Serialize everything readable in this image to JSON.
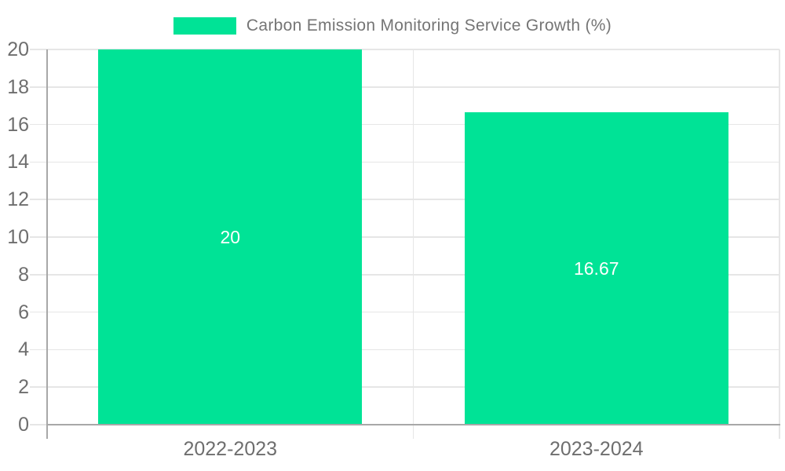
{
  "chart_data": {
    "type": "bar",
    "title": "Carbon Emission Monitoring Service Growth (%)",
    "categories": [
      "2022-2023",
      "2023-2024"
    ],
    "values": [
      20,
      16.67
    ],
    "bar_labels": [
      "20",
      "16.67"
    ],
    "yticks": [
      0,
      2,
      4,
      6,
      8,
      10,
      12,
      14,
      16,
      18,
      20
    ],
    "ylim": [
      0,
      20
    ],
    "xlabel": "",
    "ylabel": "",
    "grid": true,
    "legend_position": "top"
  },
  "colors": {
    "bar": "#00E396",
    "bar_label": "#ffffff",
    "axis_text": "#6e6e6e",
    "legend_text": "#757575",
    "gridline": "#e6e6e6",
    "axis_line": "#a8a8a8",
    "background": "#ffffff"
  }
}
